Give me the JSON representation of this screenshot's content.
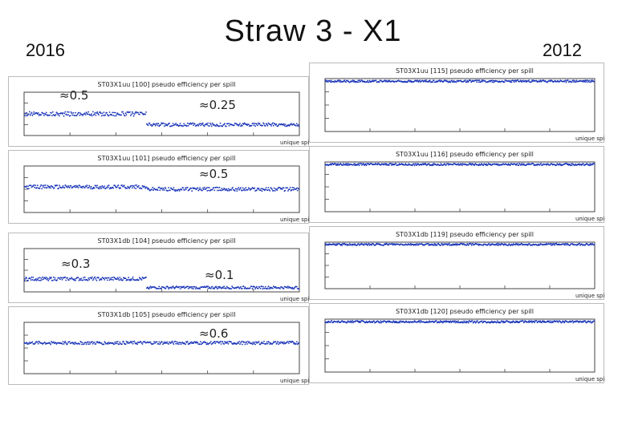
{
  "title": "Straw 3 - X1",
  "year_left": "2016",
  "year_right": "2012",
  "annotations": [
    "≈0.5",
    "≈0.25",
    "≈0.5",
    "≈0.3",
    "≈0.1",
    "≈0.6"
  ],
  "chart_data": [
    {
      "type": "scatter",
      "title": "ST03X1uu [100] pseudo efficiency per spill",
      "year": "2016",
      "xlabel": "unique spill",
      "ylim": [
        0,
        1
      ],
      "segments": [
        {
          "x": [
            0,
            120
          ],
          "level": 0.5,
          "noise": 0.05
        },
        {
          "x": [
            120,
            270
          ],
          "level": 0.25,
          "noise": 0.04
        }
      ]
    },
    {
      "type": "scatter",
      "title": "ST03X1uu [101] pseudo efficiency per spill",
      "year": "2016",
      "xlabel": "unique spill",
      "ylim": [
        0,
        1
      ],
      "segments": [
        {
          "x": [
            0,
            120
          ],
          "level": 0.55,
          "noise": 0.04
        },
        {
          "x": [
            120,
            270
          ],
          "level": 0.5,
          "noise": 0.04
        }
      ]
    },
    {
      "type": "scatter",
      "title": "ST03X1db [104] pseudo efficiency per spill",
      "year": "2016",
      "xlabel": "unique spill",
      "ylim": [
        0,
        1
      ],
      "segments": [
        {
          "x": [
            0,
            120
          ],
          "level": 0.3,
          "noise": 0.04
        },
        {
          "x": [
            120,
            270
          ],
          "level": 0.1,
          "noise": 0.03
        }
      ]
    },
    {
      "type": "scatter",
      "title": "ST03X1db [105] pseudo efficiency per spill",
      "year": "2016",
      "xlabel": "unique spill",
      "ylim": [
        0,
        1
      ],
      "segments": [
        {
          "x": [
            0,
            120
          ],
          "level": 0.6,
          "noise": 0.03
        },
        {
          "x": [
            120,
            270
          ],
          "level": 0.6,
          "noise": 0.03
        }
      ]
    },
    {
      "type": "scatter",
      "title": "ST03X1uu [115] pseudo efficiency per spill",
      "year": "2012",
      "xlabel": "unique spill",
      "ylim": [
        0,
        1
      ],
      "segments": [
        {
          "x": [
            0,
            300
          ],
          "level": 0.95,
          "noise": 0.02
        }
      ]
    },
    {
      "type": "scatter",
      "title": "ST03X1uu [116] pseudo efficiency per spill",
      "year": "2012",
      "xlabel": "unique spill",
      "ylim": [
        0,
        1
      ],
      "segments": [
        {
          "x": [
            0,
            300
          ],
          "level": 0.95,
          "noise": 0.02
        }
      ]
    },
    {
      "type": "scatter",
      "title": "ST03X1db [119] pseudo efficiency per spill",
      "year": "2012",
      "xlabel": "unique spill",
      "ylim": [
        0,
        1
      ],
      "segments": [
        {
          "x": [
            0,
            300
          ],
          "level": 0.95,
          "noise": 0.02
        }
      ]
    },
    {
      "type": "scatter",
      "title": "ST03X1db [120] pseudo efficiency per spill",
      "year": "2012",
      "xlabel": "unique spill",
      "ylim": [
        0,
        1
      ],
      "segments": [
        {
          "x": [
            0,
            300
          ],
          "level": 0.95,
          "noise": 0.02
        }
      ]
    }
  ]
}
